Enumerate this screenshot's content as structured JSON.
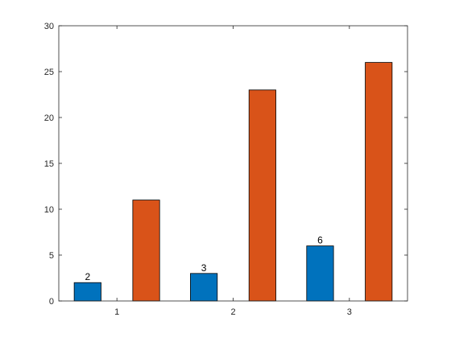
{
  "chart_data": {
    "type": "bar",
    "categories": [
      "1",
      "2",
      "3"
    ],
    "series": [
      {
        "values": [
          2,
          3,
          6
        ],
        "color": "#0072BD",
        "data_labels": [
          "2",
          "3",
          "6"
        ]
      },
      {
        "values": [
          11,
          23,
          26
        ],
        "color": "#D95319"
      }
    ],
    "ylim": [
      0,
      30
    ],
    "yticks": [
      0,
      5,
      10,
      15,
      20,
      25,
      30
    ],
    "title": "",
    "xlabel": "",
    "ylabel": "",
    "grid": false,
    "legend": "none"
  }
}
